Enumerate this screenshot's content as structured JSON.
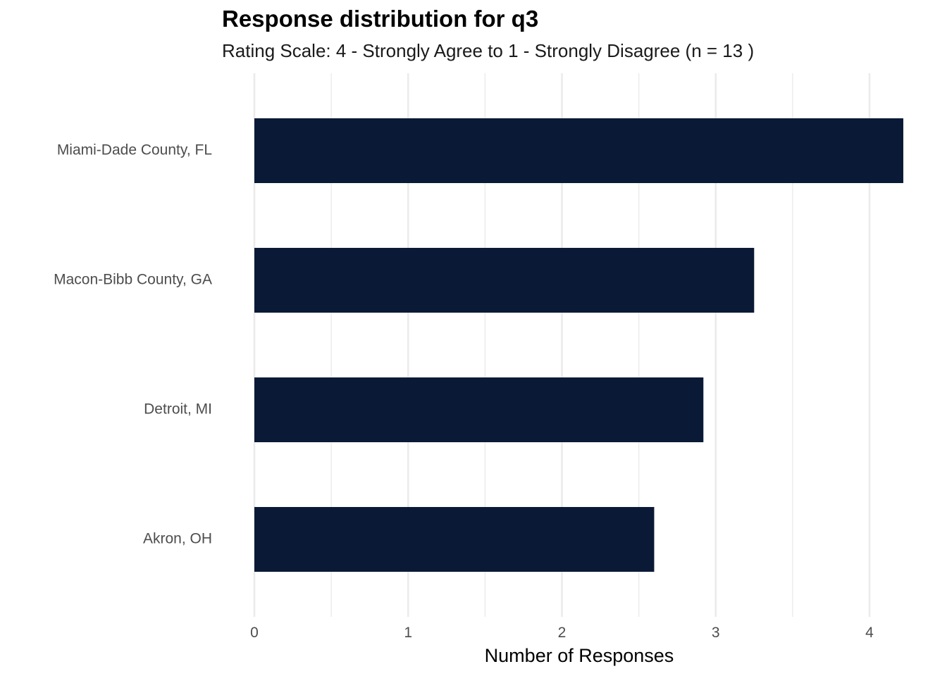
{
  "chart_data": {
    "type": "bar",
    "orientation": "horizontal",
    "title": "Response distribution for q3",
    "subtitle": "Rating Scale: 4 - Strongly Agree to 1 - Strongly Disagree (n = 13 )",
    "xlabel": "Number of Responses",
    "ylabel": "",
    "categories": [
      "Miami-Dade County, FL",
      "Macon-Bibb County, GA",
      "Detroit, MI",
      "Akron, OH"
    ],
    "values": [
      4.22,
      3.25,
      2.92,
      2.6
    ],
    "xlim": [
      0,
      4.25
    ],
    "x_ticks": [
      "0",
      "1",
      "2",
      "3",
      "4"
    ],
    "grid": true,
    "legend": "none",
    "bar_color": "#0a1a36",
    "grid_color": "#ebebeb"
  }
}
